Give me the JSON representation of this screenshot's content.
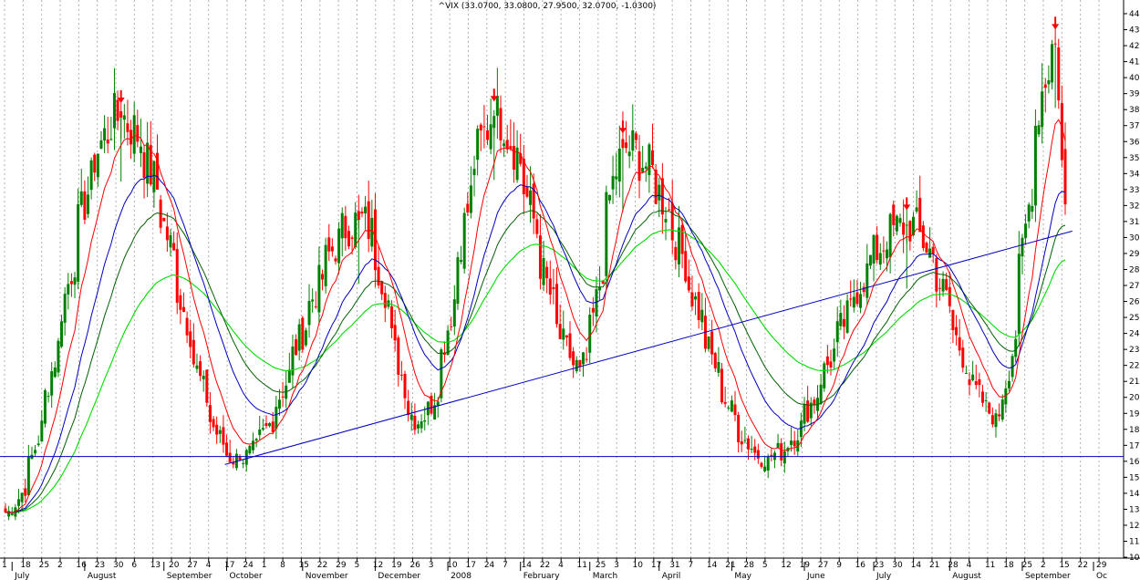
{
  "chart_data": {
    "type": "candlestick",
    "title": "^VIX (33.0700, 33.0800, 27.9500, 32.0700, -1.0300)",
    "ylim": [
      10,
      45
    ],
    "y_ticks": [
      10,
      11,
      12,
      13,
      14,
      15,
      16,
      17,
      18,
      19,
      20,
      21,
      22,
      23,
      24,
      25,
      26,
      27,
      28,
      29,
      30,
      31,
      32,
      33,
      34,
      35,
      36,
      37,
      38,
      39,
      40,
      41,
      42,
      43,
      44
    ],
    "x_day_ticks": [
      "1",
      "18",
      "25",
      "2",
      "16",
      "23",
      "30",
      "6",
      "13",
      "20",
      "27",
      "4",
      "17",
      "24",
      "1",
      "8",
      "15",
      "22",
      "29",
      "5",
      "12",
      "19",
      "26",
      "3",
      "10",
      "17",
      "24",
      "7",
      "14",
      "22",
      "4",
      "11",
      "25",
      "3",
      "10",
      "17",
      "31",
      "7",
      "14",
      "21",
      "28",
      "5",
      "12",
      "19",
      "27",
      "9",
      "16",
      "23",
      "30",
      "14",
      "21",
      "28",
      "4",
      "11",
      "18",
      "25",
      "2",
      "15",
      "22",
      "29"
    ],
    "x_month_ticks": [
      "July",
      "August",
      "September",
      "October",
      "November",
      "December",
      "2008",
      "February",
      "March",
      "April",
      "May",
      "June",
      "July",
      "August",
      "September",
      "Oc"
    ],
    "colors": {
      "up": "#008000",
      "down": "#ff0000",
      "ma_short": "#ff0000",
      "ma_mid": "#0000c0",
      "ma_mid2": "#006000",
      "ma_long": "#00dd00",
      "trendline": "#0000c0",
      "arrow": "#ff0000",
      "grid": "#b0b0b0"
    },
    "key_points": [
      {
        "date": "2007-06-28",
        "value": 12.8,
        "note": "start"
      },
      {
        "date": "2007-08-16",
        "value": 37.5,
        "note": "peak"
      },
      {
        "date": "2007-10-05",
        "value": 16.1,
        "note": "trough"
      },
      {
        "date": "2007-11-26",
        "value": 31.1,
        "note": "peak"
      },
      {
        "date": "2007-12-21",
        "value": 18.5,
        "note": "trough"
      },
      {
        "date": "2008-01-22",
        "value": 37.6,
        "note": "peak"
      },
      {
        "date": "2008-02-27",
        "value": 21.9,
        "note": "trough"
      },
      {
        "date": "2008-03-17",
        "value": 35.6,
        "note": "peak"
      },
      {
        "date": "2008-05-16",
        "value": 16.3,
        "note": "trough"
      },
      {
        "date": "2008-07-15",
        "value": 30.8,
        "note": "peak"
      },
      {
        "date": "2008-08-21",
        "value": 19.0,
        "note": "trough"
      },
      {
        "date": "2008-09-16",
        "value": 42.1,
        "note": "peak"
      },
      {
        "date": "2008-09-19",
        "value": 32.07,
        "note": "last close"
      }
    ],
    "horizontal_support": 16.3,
    "trendline": {
      "from_value": 15.8,
      "to_value": 30.4,
      "from_label": "October 1",
      "to_label": "September 22"
    },
    "down_arrows_at_peaks": [
      "2007-08-16",
      "2008-01-22",
      "2008-03-17",
      "2008-07-15",
      "2008-09-16"
    ]
  }
}
